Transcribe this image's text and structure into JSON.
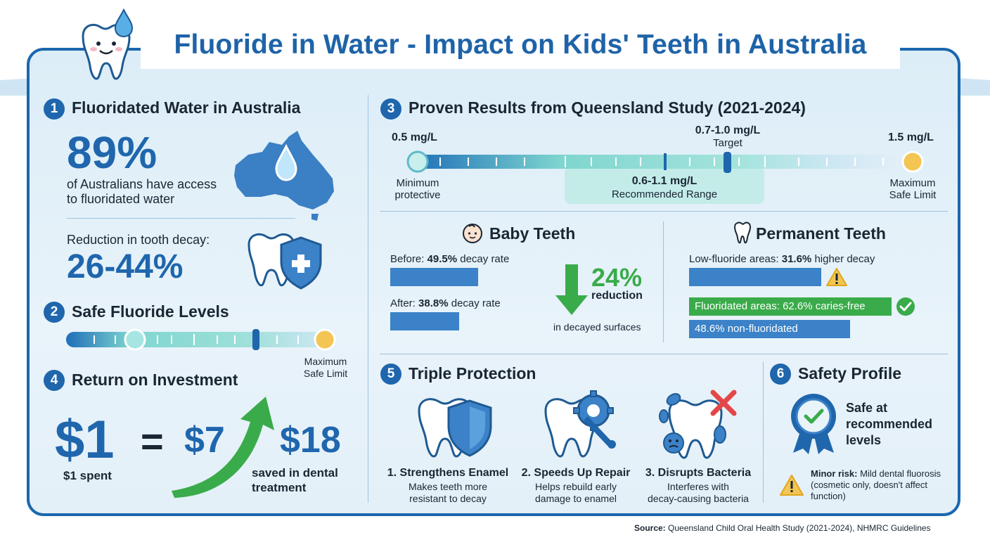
{
  "title": "Fluoride in Water - Impact on Kids' Teeth in Australia",
  "colors": {
    "primary": "#1f66ad",
    "green": "#3aab4a",
    "teal": "#7fd6cf",
    "yellow": "#f3c553"
  },
  "s1": {
    "number": "1",
    "title": "Fluoridated Water in Australia",
    "access_pct": "89%",
    "access_text_1": "of Australians have access",
    "access_text_2": "to fluoridated water",
    "reduction_label": "Reduction in tooth decay:",
    "reduction_value": "26-44%"
  },
  "s2": {
    "number": "2",
    "title": "Safe Fluoride Levels",
    "max_label_1": "Maximum",
    "max_label_2": "Safe Limit"
  },
  "s4": {
    "number": "4",
    "title": "Return on Investment",
    "spent_value": "$1",
    "equals": "=",
    "saved_low": "$7",
    "saved_high": "$18",
    "spent_label": "$1 spent",
    "saved_label_1": "saved in dental",
    "saved_label_2": "treatment"
  },
  "s3": {
    "number": "3",
    "title": "Proven Results from Queensland Study (2021-2024)",
    "scale": {
      "min_value": "0.5 mg/L",
      "min_label_1": "Minimum",
      "min_label_2": "protective",
      "target_value": "0.7-1.0 mg/L",
      "target_label": "Target",
      "max_value": "1.5 mg/L",
      "max_label_1": "Maximum",
      "max_label_2": "Safe Limit",
      "range_value": "0.6-1.1 mg/L",
      "range_label": "Recommended Range"
    },
    "baby": {
      "title": "Baby Teeth",
      "before_prefix": "Before: ",
      "before_value": "49.5%",
      "before_suffix": " decay rate",
      "before_rate": 49.5,
      "after_prefix": "After: ",
      "after_value": "38.8%",
      "after_suffix": " decay rate",
      "after_rate": 38.8,
      "reduction_value": "24%",
      "reduction_label": "reduction",
      "reduction_note": "in decayed surfaces"
    },
    "permanent": {
      "title": "Permanent Teeth",
      "low_prefix": "Low-fluoride areas: ",
      "low_value": "31.6%",
      "low_suffix": " higher decay",
      "fluoridated_text": "Fluoridated areas: 62.6% caries-free",
      "non_fluoridated_text": "48.6% non-fluoridated",
      "fluoridated_rate": 62.6,
      "non_fluoridated_rate": 48.6
    }
  },
  "s5": {
    "number": "5",
    "title": "Triple Protection",
    "items": [
      {
        "title": "1. Strengthens Enamel",
        "line1": "Makes teeth more",
        "line2": "resistant to decay"
      },
      {
        "title": "2. Speeds Up Repair",
        "line1": "Helps rebuild early",
        "line2": "damage to enamel"
      },
      {
        "title": "3. Disrupts Bacteria",
        "line1": "Interferes with",
        "line2": "decay-causing bacteria"
      }
    ]
  },
  "s6": {
    "number": "6",
    "title": "Safety Profile",
    "safe_1": "Safe at",
    "safe_2": "recommended",
    "safe_3": "levels",
    "risk_label": "Minor risk:",
    "risk_text_1": " Mild dental fluorosis",
    "risk_text_2": "(cosmetic only, doesn't affect",
    "risk_text_3": "function)"
  },
  "source_label": "Source:",
  "source_text": " Queensland Child Oral Health Study (2021-2024), NHMRC Guidelines"
}
